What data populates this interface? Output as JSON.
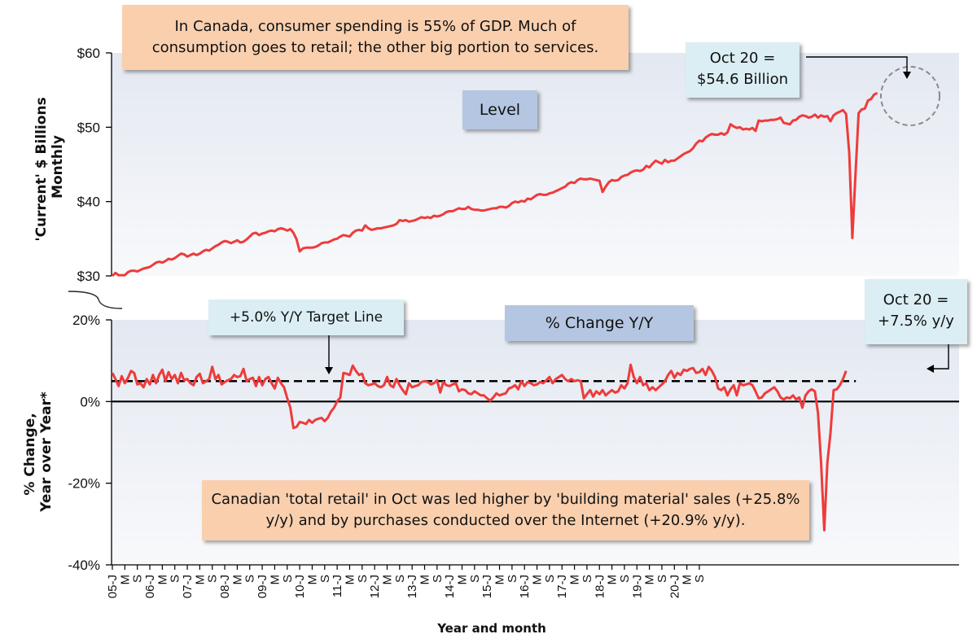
{
  "chart_data": [
    {
      "type": "line",
      "panel": "top",
      "ylabel": [
        "'Current' $ Billions",
        "Monthly"
      ],
      "ylim": [
        30,
        60
      ],
      "y_ticks": [
        "$30",
        "$40",
        "$50",
        "$60"
      ],
      "y_tick_values": [
        30,
        40,
        50,
        60
      ],
      "label_box": "Level",
      "series": [
        {
          "color": "#ee3b3b",
          "x_start": "2005-01",
          "values": [
            30.0,
            30.4,
            30.1,
            30.1,
            30.1,
            30.5,
            30.7,
            30.7,
            30.6,
            30.8,
            31.0,
            31.1,
            31.2,
            31.5,
            31.8,
            31.9,
            31.8,
            32.0,
            32.3,
            32.2,
            32.4,
            32.7,
            33.0,
            32.9,
            32.6,
            32.8,
            33.0,
            32.8,
            33.0,
            33.3,
            33.5,
            33.4,
            33.7,
            34.0,
            34.2,
            34.5,
            34.7,
            34.6,
            34.4,
            34.6,
            34.8,
            34.5,
            34.6,
            34.9,
            35.3,
            35.7,
            35.8,
            35.5,
            35.7,
            35.8,
            36.0,
            36.1,
            36.0,
            36.3,
            36.4,
            36.3,
            36.1,
            36.3,
            35.8,
            34.9,
            33.3,
            33.7,
            33.8,
            33.8,
            33.8,
            33.9,
            34.1,
            34.4,
            34.5,
            34.5,
            34.7,
            34.9,
            35.0,
            35.3,
            35.5,
            35.4,
            35.3,
            35.8,
            36.1,
            36.2,
            36.1,
            36.8,
            36.4,
            36.2,
            36.3,
            36.4,
            36.4,
            36.5,
            36.6,
            36.7,
            36.8,
            37.0,
            37.5,
            37.4,
            37.5,
            37.3,
            37.4,
            37.5,
            37.7,
            37.9,
            37.8,
            37.9,
            37.8,
            38.1,
            38.0,
            38.1,
            38.3,
            38.6,
            38.7,
            38.7,
            38.9,
            39.1,
            39.0,
            39.0,
            39.3,
            39.0,
            38.9,
            38.9,
            38.8,
            38.8,
            38.9,
            39.0,
            39.1,
            39.1,
            39.3,
            39.3,
            39.2,
            39.4,
            39.8,
            40.0,
            39.9,
            40.1,
            40.0,
            40.4,
            40.3,
            40.6,
            40.9,
            41.0,
            40.9,
            40.9,
            41.1,
            41.2,
            41.4,
            41.6,
            41.8,
            42.0,
            42.4,
            42.6,
            42.5,
            42.9,
            43.1,
            43.0,
            43.0,
            43.1,
            43.0,
            42.9,
            42.8,
            41.3,
            42.0,
            42.6,
            42.9,
            42.8,
            42.9,
            43.3,
            43.5,
            43.6,
            43.9,
            44.1,
            44.2,
            44.1,
            44.3,
            44.8,
            44.6,
            45.1,
            45.5,
            45.3,
            45.1,
            45.6,
            45.3,
            45.5,
            45.5,
            45.8,
            46.1,
            46.4,
            46.6,
            46.8,
            47.2,
            47.8,
            48.2,
            48.1,
            48.6,
            48.9,
            49.1,
            49.0,
            49.0,
            49.2,
            49.0,
            49.3,
            50.4,
            50.1,
            49.9,
            50.0,
            49.7,
            49.8,
            49.7,
            49.9,
            49.5,
            50.9,
            50.8,
            50.9,
            50.9,
            51.0,
            51.0,
            51.1,
            51.3,
            50.6,
            50.5,
            50.4,
            50.9,
            51.0,
            51.4,
            51.6,
            51.5,
            51.3,
            51.4,
            51.7,
            51.3,
            51.6,
            51.4,
            51.5,
            50.8,
            51.6,
            51.9,
            52.1,
            52.3,
            51.8,
            46.5,
            35.1,
            43.5,
            51.9,
            52.4,
            52.5,
            53.6,
            53.8,
            54.4,
            54.6
          ]
        }
      ],
      "annotations": [
        {
          "text": [
            "In Canada, consumer spending is 55% of GDP. Much of",
            "consumption goes to retail; the other big portion to services."
          ]
        },
        {
          "text": [
            "Oct 20 =",
            "$54.6 Billion"
          ]
        }
      ]
    },
    {
      "type": "line",
      "panel": "bottom",
      "ylabel": [
        "% Change,",
        "Year over Year*"
      ],
      "xlabel": "Year and month",
      "ylim": [
        -40,
        20
      ],
      "y_ticks": [
        "-40%",
        "-20%",
        "0%",
        "20%"
      ],
      "y_tick_values": [
        -40,
        -20,
        0,
        20
      ],
      "target_line": 5.0,
      "x_ticks": [
        "05-J",
        "M",
        "S",
        "06-J",
        "M",
        "S",
        "07-J",
        "M",
        "S",
        "08-J",
        "M",
        "S",
        "09-J",
        "M",
        "S",
        "10-J",
        "M",
        "S",
        "11-J",
        "M",
        "S",
        "12-J",
        "M",
        "S",
        "13-J",
        "M",
        "S",
        "14-J",
        "M",
        "S",
        "15-J",
        "M",
        "S",
        "16-J",
        "M",
        "S",
        "17-J",
        "M",
        "S",
        "18-J",
        "M",
        "S",
        "19-J",
        "M",
        "S",
        "20-J",
        "M",
        "S"
      ],
      "label_box": "% Change Y/Y",
      "series": [
        {
          "color": "#ee3b3b",
          "x_start": "2005-01",
          "values": [
            7.0,
            5.5,
            3.8,
            6.2,
            4.5,
            5.8,
            7.5,
            7.0,
            4.2,
            4.5,
            3.5,
            5.5,
            4.2,
            6.5,
            4.5,
            6.5,
            7.8,
            5.0,
            7.2,
            5.5,
            6.5,
            4.5,
            7.0,
            5.2,
            5.5,
            4.5,
            4.0,
            6.0,
            6.8,
            4.5,
            5.0,
            5.5,
            8.5,
            5.5,
            6.5,
            4.2,
            4.8,
            5.2,
            5.5,
            6.5,
            6.0,
            6.2,
            8.0,
            5.0,
            5.5,
            5.8,
            3.8,
            6.0,
            4.0,
            5.5,
            6.0,
            4.5,
            3.2,
            5.8,
            4.5,
            3.5,
            0.8,
            -1.5,
            -6.5,
            -6.2,
            -5.0,
            -5.2,
            -5.5,
            -4.5,
            -5.2,
            -4.5,
            -4.2,
            -4.0,
            -4.8,
            -4.0,
            -2.5,
            -1.5,
            0.0,
            1.0,
            7.0,
            6.8,
            6.5,
            8.8,
            7.5,
            6.5,
            6.8,
            4.5,
            4.0,
            4.2,
            4.5,
            3.8,
            3.5,
            4.0,
            6.0,
            4.0,
            3.5,
            5.5,
            4.0,
            2.8,
            1.8,
            4.5,
            3.5,
            3.8,
            4.0,
            4.8,
            5.0,
            4.8,
            4.2,
            4.5,
            5.2,
            2.2,
            4.8,
            4.0,
            3.8,
            4.2,
            4.5,
            2.5,
            3.0,
            2.8,
            2.0,
            1.8,
            2.5,
            2.0,
            1.5,
            1.5,
            0.8,
            0.2,
            1.0,
            2.0,
            1.5,
            1.8,
            2.0,
            3.2,
            3.5,
            4.0,
            3.0,
            5.0,
            3.8,
            4.8,
            4.5,
            4.0,
            4.2,
            4.8,
            4.5,
            5.2,
            6.0,
            4.5,
            5.5,
            6.0,
            6.5,
            5.5,
            5.0,
            5.5,
            5.0,
            5.2,
            5.0,
            0.8,
            1.8,
            2.8,
            1.2,
            2.5,
            1.8,
            2.8,
            1.5,
            2.2,
            2.8,
            2.2,
            2.5,
            4.0,
            3.2,
            4.5,
            9.0,
            6.0,
            4.5,
            6.0,
            4.0,
            4.5,
            2.8,
            3.5,
            2.8,
            3.5,
            4.2,
            5.0,
            6.5,
            7.5,
            5.8,
            7.0,
            6.5,
            7.8,
            7.5,
            8.0,
            8.2,
            7.0,
            7.2,
            8.0,
            6.5,
            8.5,
            7.5,
            6.0,
            3.2,
            2.8,
            3.5,
            1.5,
            3.0,
            4.0,
            1.5,
            4.5,
            4.0,
            4.2,
            4.5,
            4.0,
            2.5,
            0.8,
            1.0,
            2.0,
            2.5,
            3.0,
            3.5,
            2.5,
            1.0,
            0.5,
            1.0,
            0.8,
            1.5,
            0.5,
            1.0,
            -1.5,
            1.5,
            2.5,
            3.0,
            2.5,
            -2.8,
            -15.0,
            -31.5,
            -15.0,
            -7.8,
            2.8,
            3.0,
            4.0,
            5.5,
            7.5
          ]
        }
      ],
      "annotations": [
        {
          "text": [
            "+5.0% Y/Y Target Line"
          ]
        },
        {
          "text": [
            "Oct 20 =",
            "+7.5% y/y"
          ]
        },
        {
          "text": [
            "Canadian 'total retail' in Oct was led higher by 'building material' sales (+25.8%",
            "y/y) and by purchases conducted over the Internet (+20.9% y/y)."
          ]
        }
      ]
    }
  ]
}
